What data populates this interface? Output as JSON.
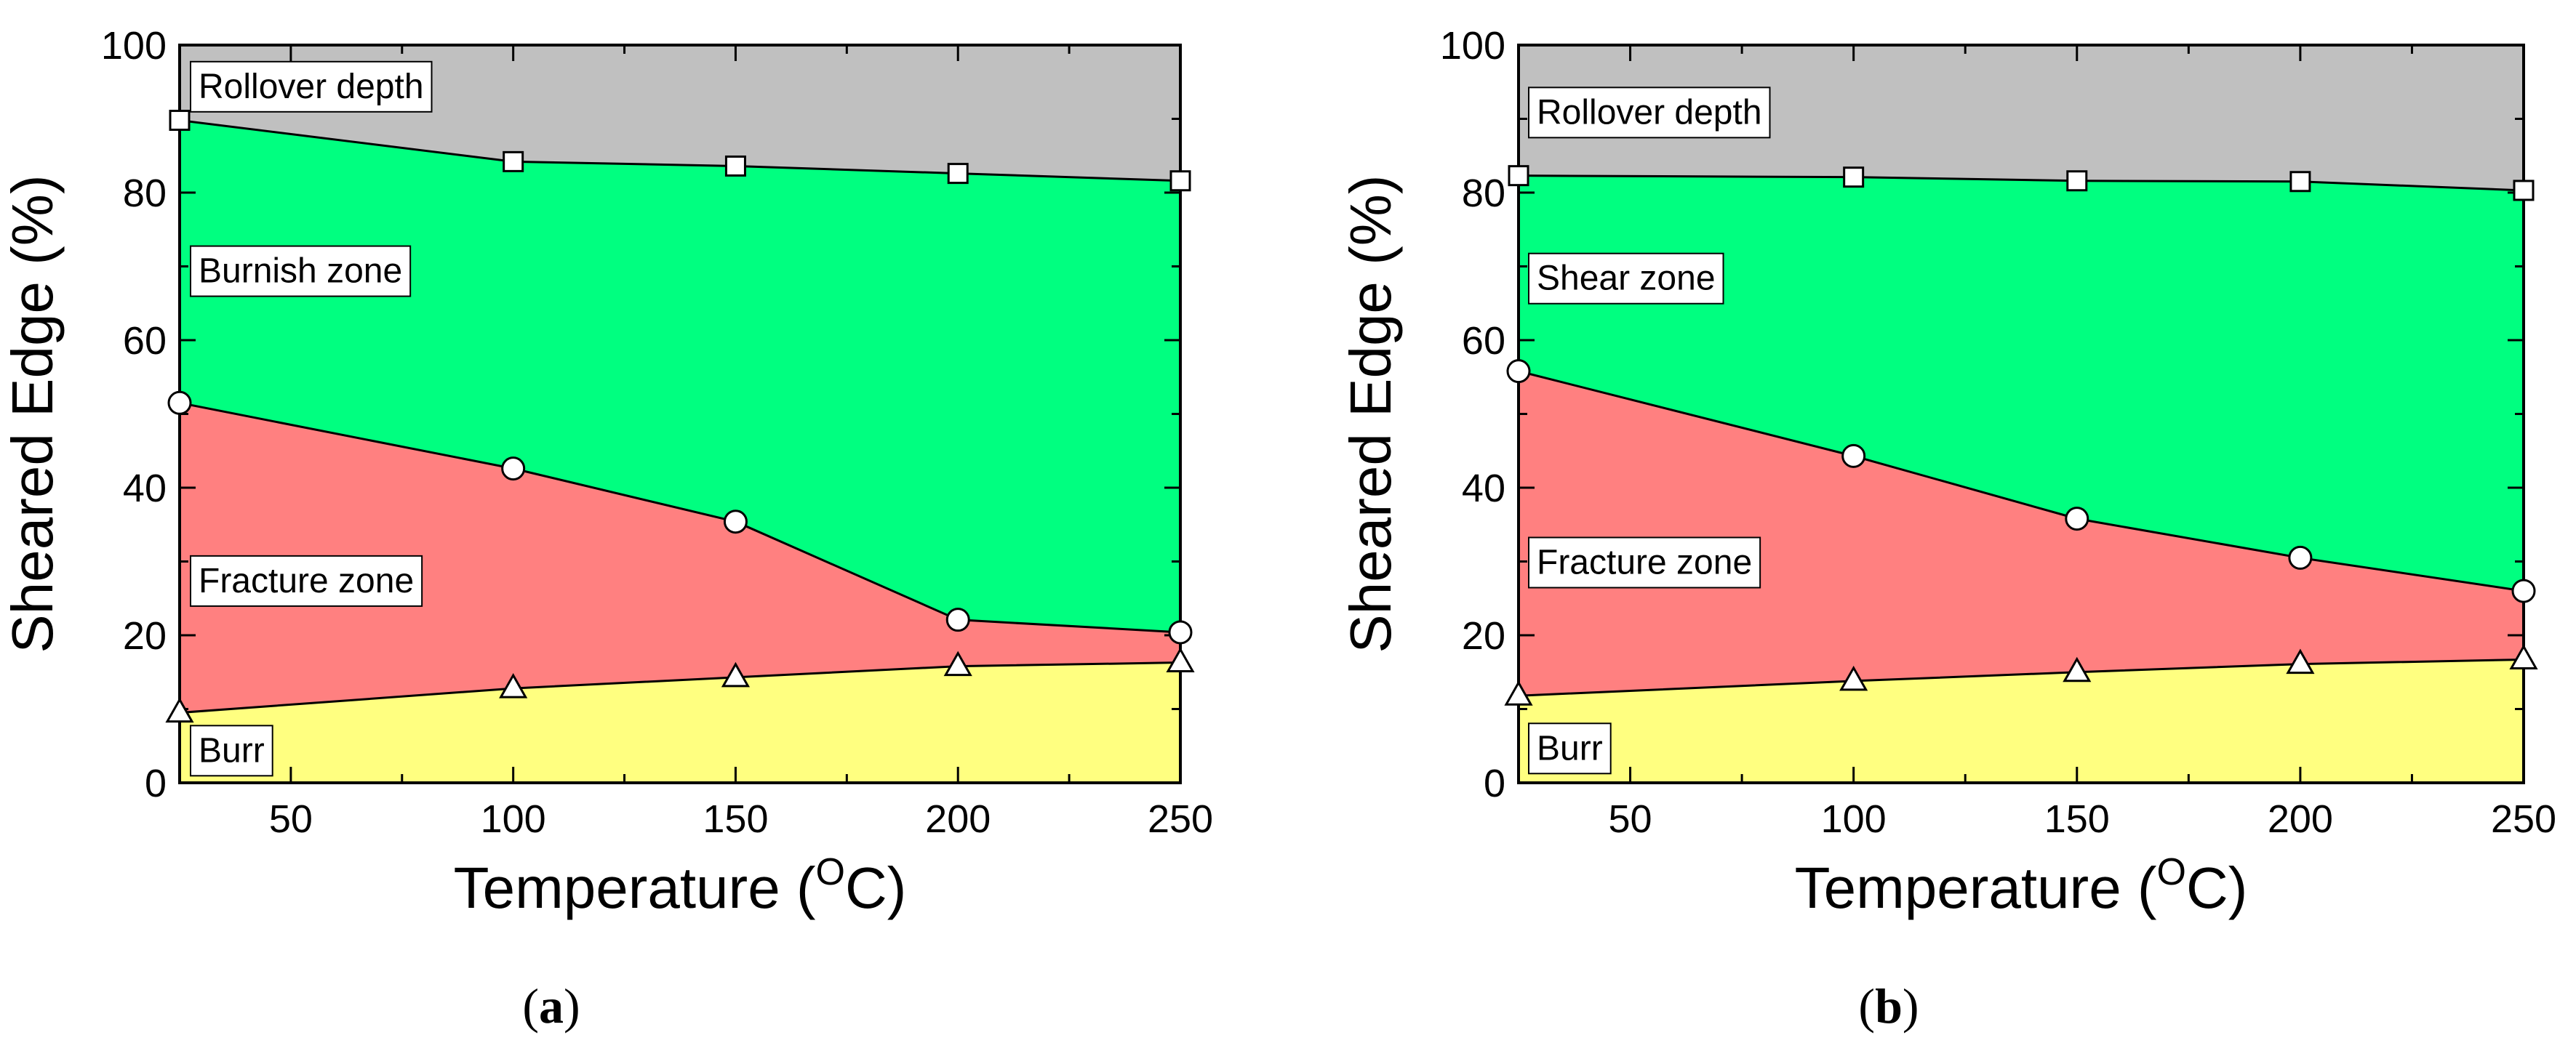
{
  "chart_data": [
    {
      "type": "area",
      "caption": "a",
      "xlabel": "Temperature (",
      "xlabel_sup": "O",
      "xlabel_tail": "C)",
      "ylabel": "Sheared Edge (%)",
      "xlim": [
        25,
        250
      ],
      "ylim": [
        0,
        100
      ],
      "xticks": [
        50,
        100,
        150,
        200,
        250
      ],
      "yticks": [
        0,
        20,
        40,
        60,
        80,
        100
      ],
      "x": [
        25,
        100,
        150,
        200,
        250
      ],
      "series": [
        {
          "name": "Burr",
          "marker": "triangle",
          "values": [
            9.5,
            12.8,
            14.3,
            15.8,
            16.3
          ],
          "color": "#ffff80"
        },
        {
          "name": "Fracture zone",
          "marker": "circle",
          "values": [
            51.5,
            42.6,
            35.4,
            22.1,
            20.4
          ],
          "color": "#ff8080"
        },
        {
          "name": "Burnish zone",
          "marker": "square",
          "values": [
            89.8,
            84.2,
            83.6,
            82.6,
            81.6
          ],
          "color": "#00ff80"
        },
        {
          "name": "Rollover depth",
          "marker": "none",
          "values": [
            100,
            100,
            100,
            100,
            100
          ],
          "color": "#c0c0c0"
        }
      ],
      "zone_labels": [
        {
          "text": "Rollover depth",
          "y": 94.5
        },
        {
          "text": "Burnish zone",
          "y": 69.5
        },
        {
          "text": "Fracture zone",
          "y": 27.5
        },
        {
          "text": "Burr",
          "y": 4.5
        }
      ]
    },
    {
      "type": "area",
      "caption": "b",
      "xlabel": "Temperature (",
      "xlabel_sup": "O",
      "xlabel_tail": "C)",
      "ylabel": "Sheared Edge (%)",
      "xlim": [
        25,
        250
      ],
      "ylim": [
        0,
        100
      ],
      "xticks": [
        50,
        100,
        150,
        200,
        250
      ],
      "yticks": [
        0,
        20,
        40,
        60,
        80,
        100
      ],
      "x": [
        25,
        100,
        150,
        200,
        250
      ],
      "series": [
        {
          "name": "Burr",
          "marker": "triangle",
          "values": [
            11.8,
            13.8,
            15.0,
            16.1,
            16.7
          ],
          "color": "#ffff80"
        },
        {
          "name": "Fracture zone",
          "marker": "circle",
          "values": [
            55.8,
            44.3,
            35.8,
            30.5,
            26.0
          ],
          "color": "#ff8080"
        },
        {
          "name": "Shear zone",
          "marker": "square",
          "values": [
            82.3,
            82.1,
            81.6,
            81.5,
            80.3
          ],
          "color": "#00ff80"
        },
        {
          "name": "Rollover depth",
          "marker": "none",
          "values": [
            100,
            100,
            100,
            100,
            100
          ],
          "color": "#c0c0c0"
        }
      ],
      "zone_labels": [
        {
          "text": "Rollover depth",
          "y": 91.0
        },
        {
          "text": "Shear zone",
          "y": 68.5
        },
        {
          "text": "Fracture zone",
          "y": 30.0
        },
        {
          "text": "Burr",
          "y": 4.8
        }
      ]
    }
  ]
}
